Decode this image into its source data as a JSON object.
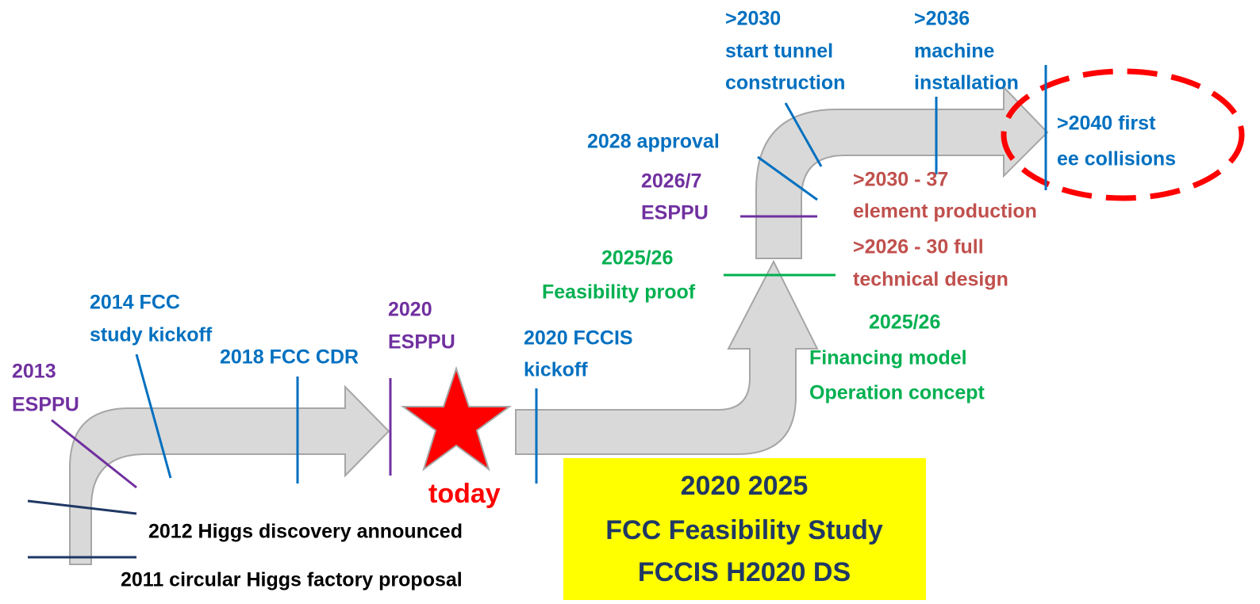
{
  "milestones": [
    {
      "lines": [
        "2013",
        "ESPPU"
      ]
    },
    {
      "lines": [
        "2014 FCC",
        "study kickoff"
      ]
    },
    {
      "lines": [
        "2018 FCC CDR"
      ]
    },
    {
      "lines": [
        "2020",
        "ESPPU"
      ]
    },
    {
      "lines": [
        "today"
      ]
    },
    {
      "lines": [
        "2020 FCCIS",
        "kickoff"
      ]
    },
    {
      "lines": [
        "2025/26",
        "Feasibility proof"
      ]
    },
    {
      "lines": [
        "2026/7",
        "ESPPU"
      ]
    },
    {
      "lines": [
        "2028 approval"
      ]
    },
    {
      "lines": [
        ">2030",
        "start tunnel",
        "construction"
      ]
    },
    {
      "lines": [
        ">2036",
        "machine",
        "installation"
      ]
    },
    {
      "lines": [
        ">2040 first",
        "ee collisions"
      ]
    },
    {
      "lines": [
        ">2030 - 37",
        "element production"
      ]
    },
    {
      "lines": [
        ">2026 - 30 full",
        "technical design"
      ]
    },
    {
      "lines": [
        "2025/26",
        "Financing model",
        "Operation concept"
      ]
    },
    {
      "lines": [
        "2012 Higgs discovery announced"
      ]
    },
    {
      "lines": [
        "2011 circular Higgs factory proposal"
      ]
    }
  ],
  "box": {
    "lines": [
      "2020 2025",
      "FCC Feasibility Study",
      "FCCIS H2020 DS"
    ]
  }
}
